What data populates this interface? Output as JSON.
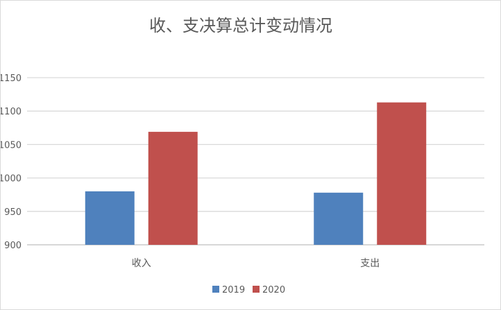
{
  "chart_data": {
    "type": "bar",
    "title": "收、支决算总计变动情况",
    "categories": [
      "收入",
      "支出"
    ],
    "series": [
      {
        "name": "2019",
        "color": "#4f81bd",
        "values": [
          980,
          978
        ]
      },
      {
        "name": "2020",
        "color": "#c0504d",
        "values": [
          1069,
          1113
        ]
      }
    ],
    "xlabel": "",
    "ylabel": "",
    "ylim": [
      900,
      1150
    ],
    "yticks": [
      900,
      950,
      1000,
      1050,
      1100,
      1150
    ],
    "grid": true,
    "legend": "bottom"
  }
}
